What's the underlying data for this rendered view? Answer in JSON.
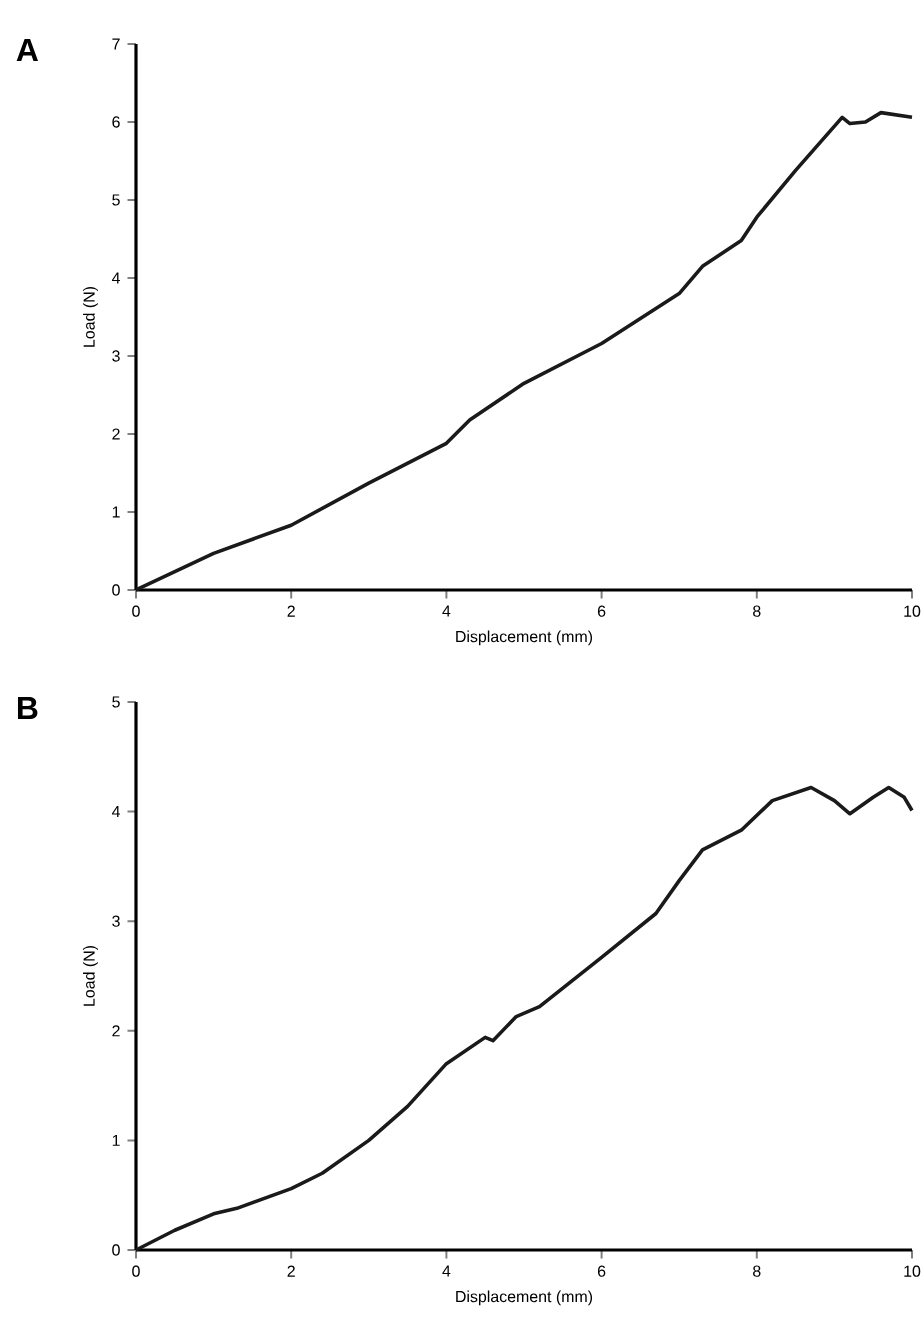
{
  "chart_data": [
    {
      "type": "line",
      "title": "A",
      "xlabel": "Displacement (mm)",
      "ylabel": "Load (N)",
      "color": "#1a1a1a",
      "line_style": "solid",
      "x": [
        0,
        1,
        2,
        3,
        4,
        4.3,
        5,
        6,
        7,
        7.3,
        7.8,
        8,
        8.5,
        9.1,
        9.2,
        9.4,
        9.6,
        10
      ],
      "values": [
        0,
        0.47,
        0.83,
        1.37,
        1.88,
        2.18,
        2.65,
        3.16,
        3.8,
        4.15,
        4.48,
        4.78,
        5.38,
        6.06,
        5.98,
        6.0,
        6.12,
        6.06
      ],
      "xlim": [
        0,
        10
      ],
      "ylim": [
        0,
        7
      ],
      "xticks": [
        0,
        2,
        4,
        6,
        8,
        10
      ],
      "yticks": [
        0,
        1,
        2,
        3,
        4,
        5,
        6,
        7
      ]
    },
    {
      "type": "line",
      "title": "B",
      "xlabel": "Displacement (mm)",
      "ylabel": "Load (N)",
      "color": "#1a1a1a",
      "line_style": "solid",
      "x": [
        0,
        0.5,
        1,
        1.3,
        2,
        2.4,
        3,
        3.5,
        4,
        4.5,
        4.6,
        4.9,
        5.2,
        6,
        6.7,
        7,
        7.3,
        7.8,
        8.2,
        8.7,
        9.0,
        9.2,
        9.5,
        9.7,
        9.9,
        10
      ],
      "values": [
        0,
        0.18,
        0.33,
        0.38,
        0.56,
        0.7,
        1.0,
        1.31,
        1.7,
        1.94,
        1.91,
        2.13,
        2.22,
        2.67,
        3.07,
        3.37,
        3.65,
        3.83,
        4.1,
        4.22,
        4.1,
        3.98,
        4.13,
        4.22,
        4.13,
        4.01
      ],
      "xlim": [
        0,
        10
      ],
      "ylim": [
        0,
        5
      ],
      "xticks": [
        0,
        2,
        4,
        6,
        8,
        10
      ],
      "yticks": [
        0,
        1,
        2,
        3,
        4,
        5
      ]
    }
  ]
}
